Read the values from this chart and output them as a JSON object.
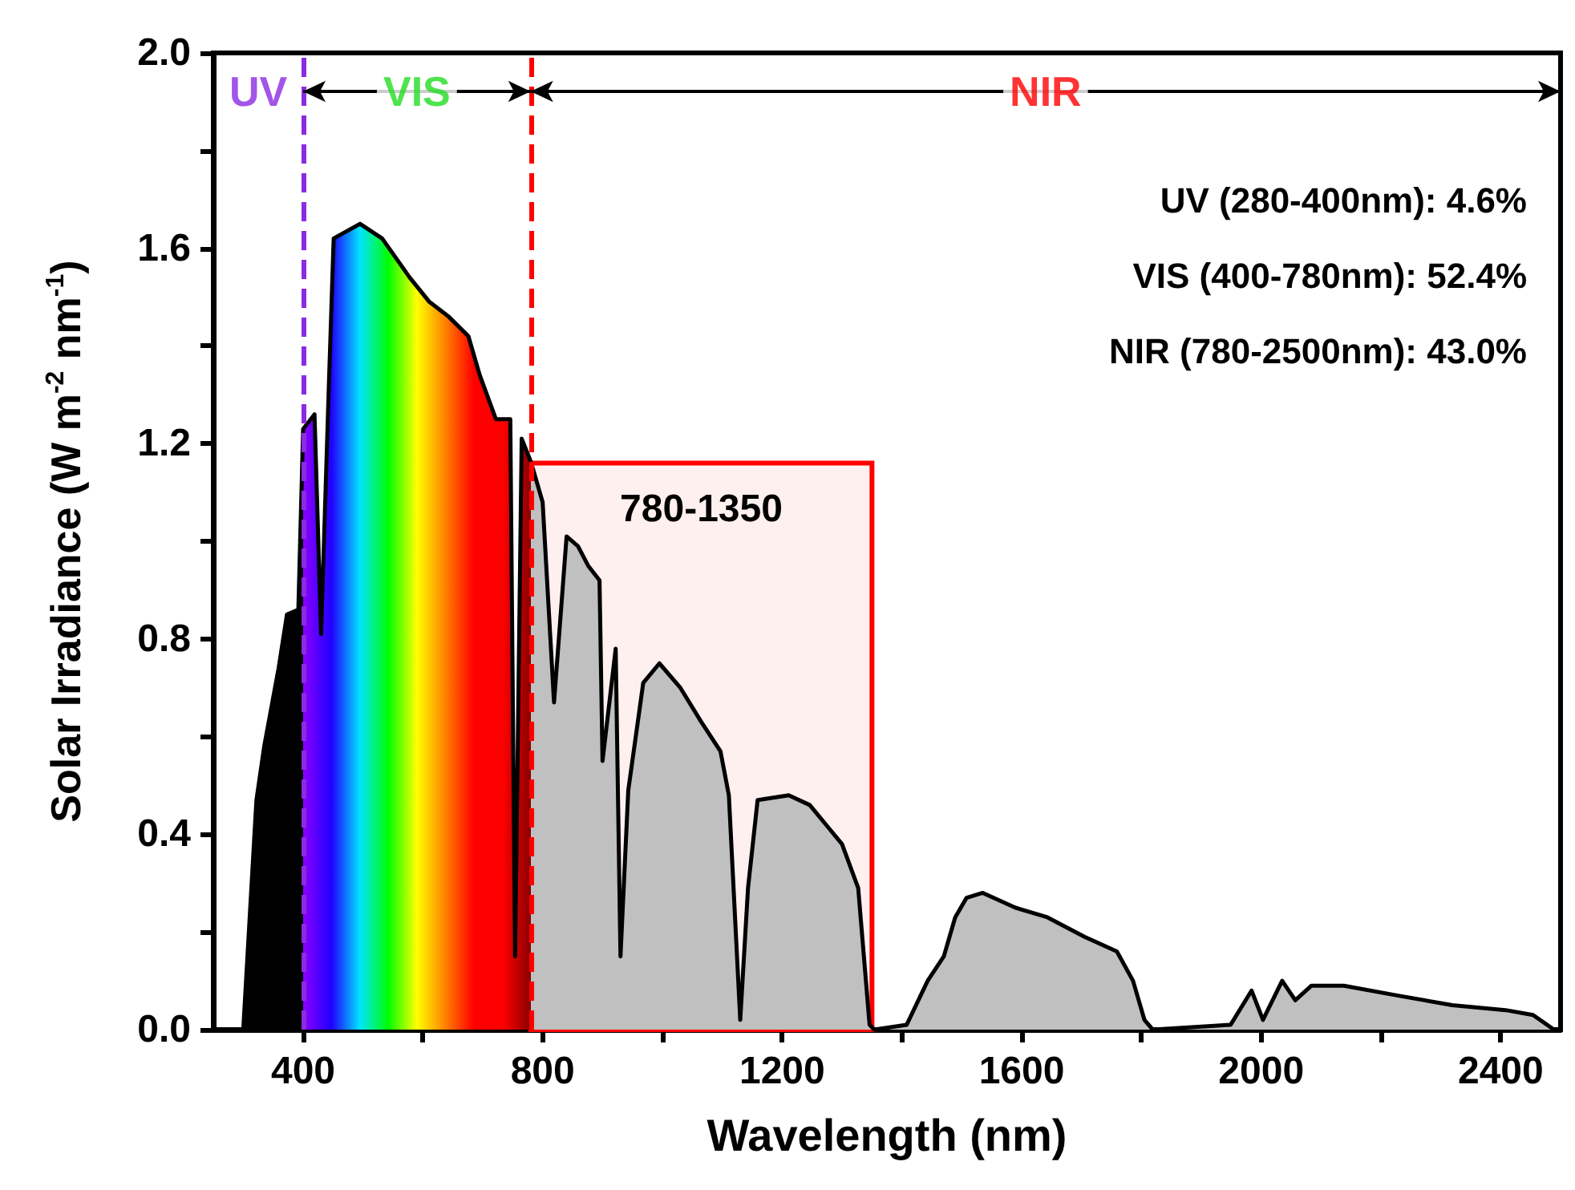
{
  "chart_data": {
    "type": "area",
    "xlabel": "Wavelength (nm)",
    "ylabel": "Solar Irradiance (W m$^{-2}$ nm$^{-1}$)",
    "x": [
      300,
      322,
      335,
      359,
      373,
      392,
      400,
      419,
      430,
      443,
      451,
      495,
      532,
      578,
      611,
      643,
      676,
      695,
      722,
      746,
      754,
      765,
      778,
      781,
      800,
      819,
      840,
      859,
      876,
      895,
      900,
      922,
      930,
      943,
      968,
      995,
      1030,
      1065,
      1097,
      1111,
      1130,
      1143,
      1159,
      1211,
      1246,
      1273,
      1300,
      1327,
      1346,
      1354,
      1408,
      1443,
      1470,
      1489,
      1508,
      1535,
      1589,
      1643,
      1705,
      1759,
      1786,
      1805,
      1819,
      1949,
      1984,
      2003,
      2035,
      2057,
      2084,
      2138,
      2227,
      2319,
      2408,
      2454,
      2489
    ],
    "series": [
      {
        "color": "#000000",
        "values": [
          0,
          0.47,
          0.58,
          0.74,
          0.85,
          0.86,
          1.23,
          1.26,
          0.81,
          1.32,
          1.62,
          1.65,
          1.62,
          1.54,
          1.49,
          1.46,
          1.42,
          1.34,
          1.25,
          1.25,
          0.15,
          1.21,
          1.17,
          1.16,
          1.08,
          0.67,
          1.01,
          0.99,
          0.95,
          0.92,
          0.55,
          0.78,
          0.15,
          0.49,
          0.71,
          0.75,
          0.7,
          0.63,
          0.57,
          0.48,
          0.02,
          0.29,
          0.47,
          0.48,
          0.46,
          0.42,
          0.38,
          0.29,
          0.01,
          0,
          0.01,
          0.1,
          0.15,
          0.23,
          0.27,
          0.28,
          0.25,
          0.23,
          0.19,
          0.16,
          0.1,
          0.02,
          0,
          0.01,
          0.08,
          0.02,
          0.1,
          0.06,
          0.09,
          0.09,
          0.07,
          0.05,
          0.04,
          0.03,
          0
        ]
      }
    ],
    "xlim": [
      250,
      2500
    ],
    "xticks": [
      400,
      {
        "value": 600,
        "label": null
      },
      800,
      {
        "value": 1000,
        "label": null
      },
      1200,
      {
        "value": 1400,
        "label": null
      },
      1600,
      {
        "value": 1800,
        "label": null
      },
      2000,
      {
        "value": 2200,
        "label": null
      },
      2400
    ],
    "ylim": [
      0,
      2
    ],
    "yticks": [
      {
        "value": 0,
        "label": "0.0"
      },
      {
        "value": 0.2,
        "label": null
      },
      0.4,
      {
        "value": 0.6,
        "label": null
      },
      0.8,
      {
        "value": 1,
        "label": null
      },
      1.2,
      {
        "value": 1.4,
        "label": null
      },
      1.6,
      {
        "value": 1.8,
        "label": null
      },
      {
        "value": 2,
        "label": "2.0"
      }
    ],
    "grid": false,
    "ref_lines": [
      {
        "axis": "x",
        "value": 400,
        "color": "#8b2be2",
        "line_style": "dashed"
      },
      {
        "axis": "x",
        "value": 780,
        "color": "#ff0000",
        "line_style": "dashed"
      }
    ],
    "bands": [
      {
        "axis": "x",
        "from": 780,
        "to": 1350,
        "label": "780-1350",
        "color": "#ff0000"
      }
    ],
    "annotations": [
      "UV",
      "VIS",
      "NIR",
      "UV (280-400nm): 4.6%",
      "VIS (400-780nm): 52.4%",
      "NIR (780-2500nm): 43.0%"
    ]
  }
}
